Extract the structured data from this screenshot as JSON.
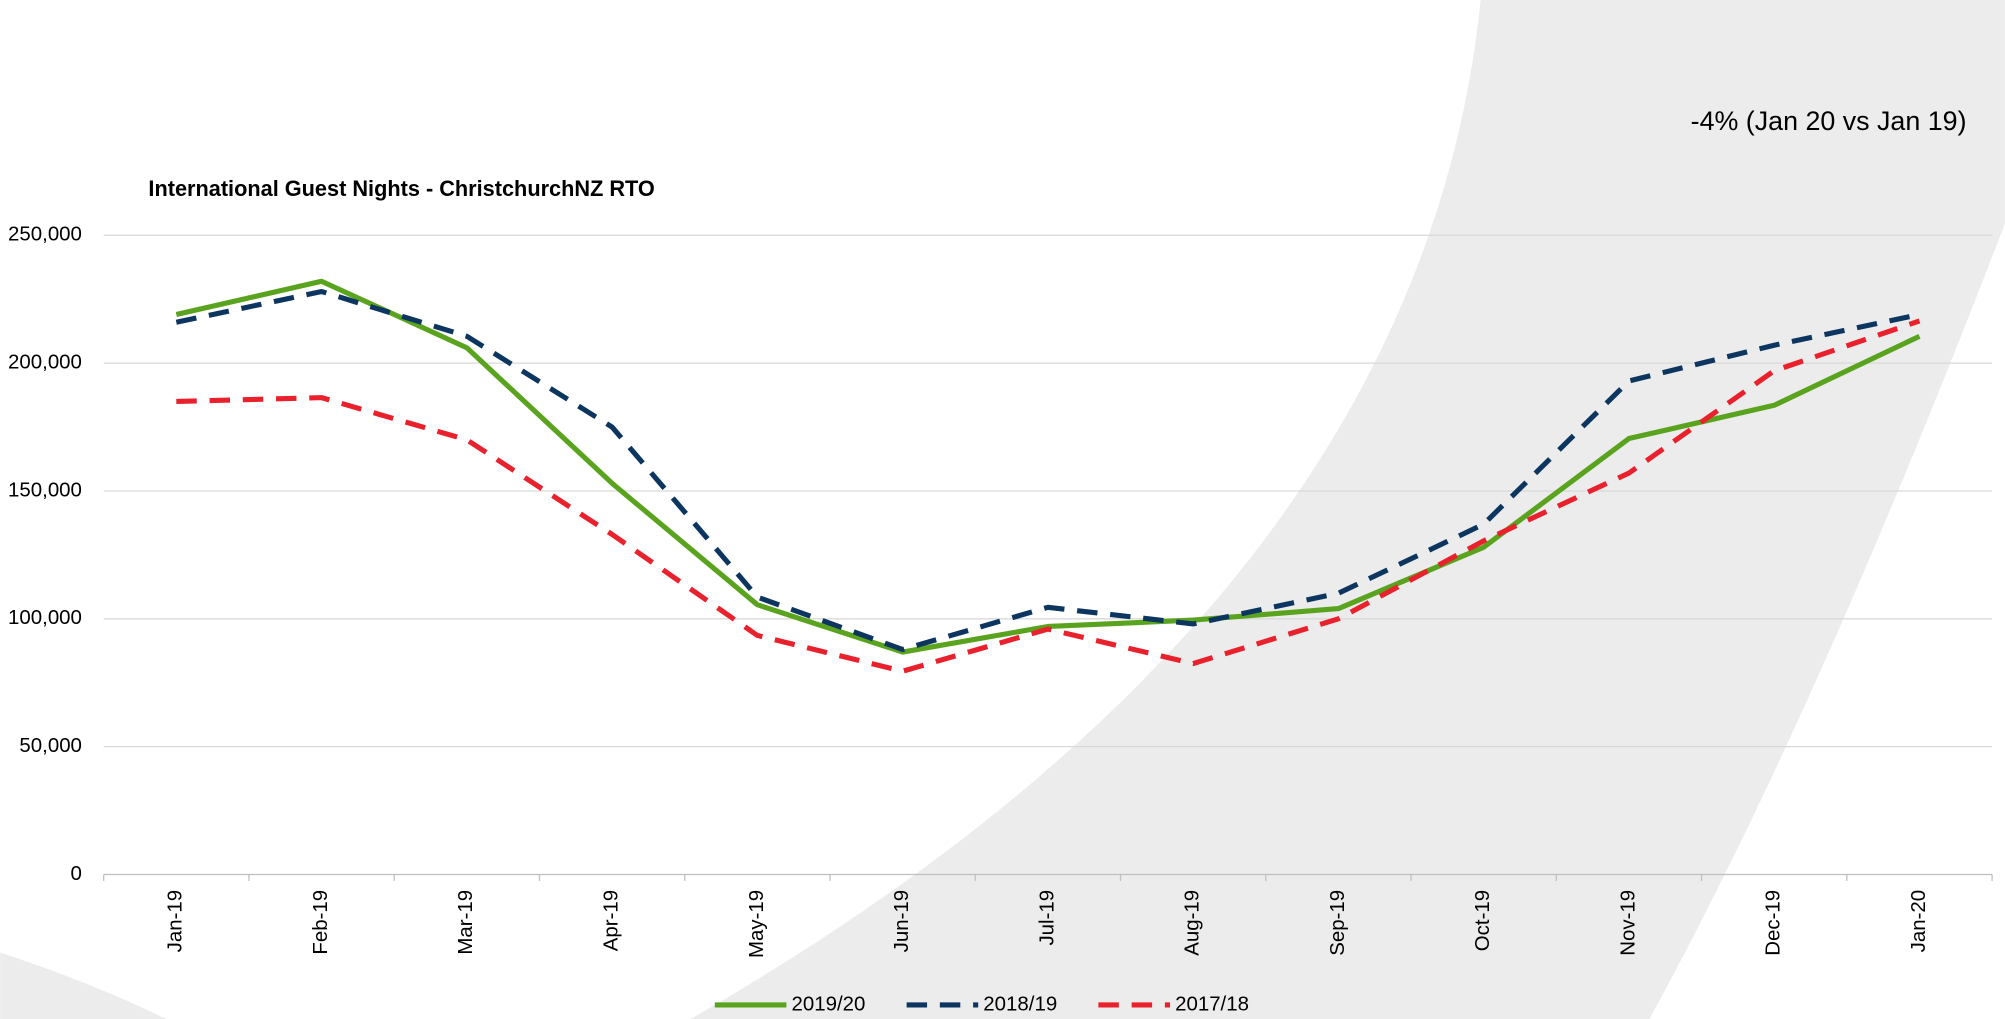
{
  "chart_data": {
    "type": "line",
    "title": "International Guest Nights - ChristchurchNZ RTO",
    "annotation": "-4% (Jan 20 vs Jan 19)",
    "categories": [
      "Jan-19",
      "Feb-19",
      "Mar-19",
      "Apr-19",
      "May-19",
      "Jun-19",
      "Jul-19",
      "Aug-19",
      "Sep-19",
      "Oct-19",
      "Nov-19",
      "Dec-19",
      "Jan-20"
    ],
    "series": [
      {
        "name": "2019/20",
        "color": "#5aa31e",
        "dashed": false,
        "values": [
          219000,
          232000,
          206000,
          153000,
          105500,
          87000,
          97000,
          99500,
          104000,
          128000,
          170500,
          183500,
          210500
        ]
      },
      {
        "name": "2018/19",
        "color": "#0c3660",
        "dashed": true,
        "values": [
          216000,
          228000,
          210500,
          175000,
          108500,
          88000,
          104500,
          98000,
          110000,
          137000,
          193000,
          207000,
          219000
        ]
      },
      {
        "name": "2017/18",
        "color": "#e8212d",
        "dashed": true,
        "values": [
          185000,
          186500,
          170000,
          133000,
          93500,
          79500,
          96000,
          82500,
          100000,
          130500,
          157000,
          197000,
          216500
        ]
      }
    ],
    "ylim": [
      0,
      250000
    ],
    "yticks": [
      0,
      {
        "value": 50000,
        "label": "50,000"
      },
      {
        "value": 100000,
        "label": "100,000"
      },
      {
        "value": 150000,
        "label": "150,000"
      },
      {
        "value": 200000,
        "label": "200,000"
      },
      {
        "value": 250000,
        "label": "250,000"
      }
    ],
    "grid": true,
    "legend": "bottom"
  }
}
